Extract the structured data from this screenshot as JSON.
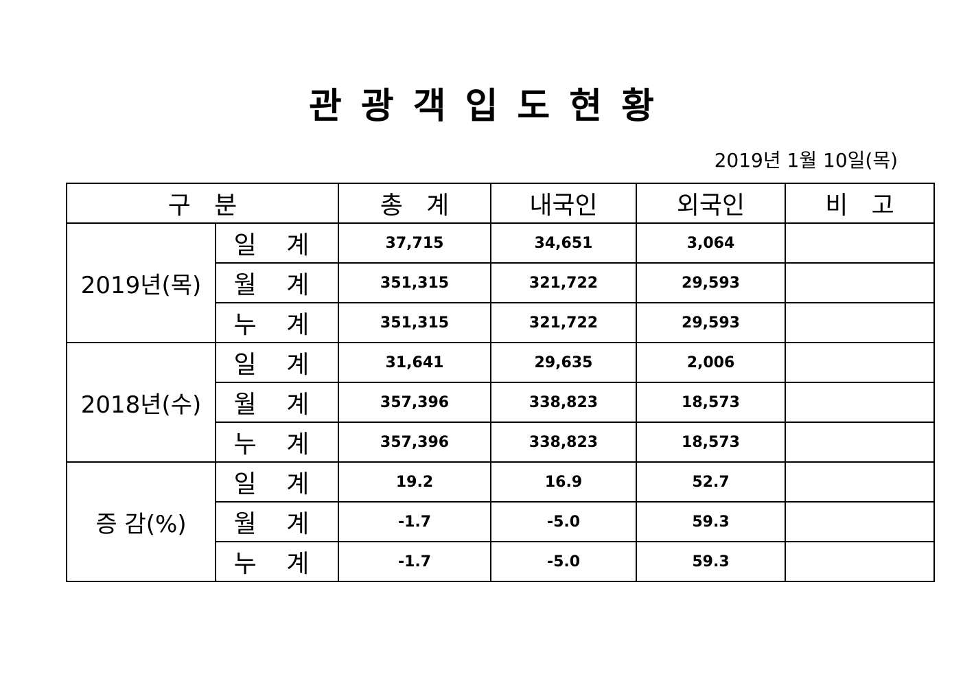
{
  "title": "관광객입도현황",
  "date": "2019년  1월  10일(목)",
  "headers": [
    "구   분",
    "총   계",
    "내국인",
    "외국인",
    "비   고"
  ],
  "groups": [
    {
      "label": "2019년(목)",
      "rows": [
        {
          "sub": "일 계",
          "total": "37,715",
          "domestic": "34,651",
          "foreign": "3,064",
          "note": ""
        },
        {
          "sub": "월 계",
          "total": "351,315",
          "domestic": "321,722",
          "foreign": "29,593",
          "note": ""
        },
        {
          "sub": "누 계",
          "total": "351,315",
          "domestic": "321,722",
          "foreign": "29,593",
          "note": ""
        }
      ]
    },
    {
      "label": "2018년(수)",
      "rows": [
        {
          "sub": "일 계",
          "total": "31,641",
          "domestic": "29,635",
          "foreign": "2,006",
          "note": ""
        },
        {
          "sub": "월 계",
          "total": "357,396",
          "domestic": "338,823",
          "foreign": "18,573",
          "note": ""
        },
        {
          "sub": "누 계",
          "total": "357,396",
          "domestic": "338,823",
          "foreign": "18,573",
          "note": ""
        }
      ]
    },
    {
      "label": "증 감(%)",
      "rows": [
        {
          "sub": "일 계",
          "total": "19.2",
          "domestic": "16.9",
          "foreign": "52.7",
          "note": ""
        },
        {
          "sub": "월 계",
          "total": "-1.7",
          "domestic": "-5.0",
          "foreign": "59.3",
          "note": ""
        },
        {
          "sub": "누 계",
          "total": "-1.7",
          "domestic": "-5.0",
          "foreign": "59.3",
          "note": ""
        }
      ]
    }
  ]
}
